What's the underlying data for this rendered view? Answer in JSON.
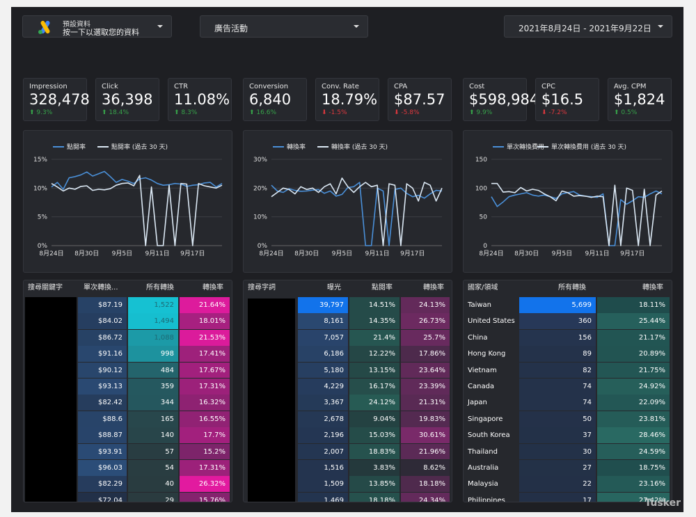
{
  "header": {
    "account": {
      "line1": "預設資料",
      "line2": "按一下以選取您的資料"
    },
    "campaign": "廣告活動",
    "date_range": "2021年8月24日 - 2021年9月22日"
  },
  "kpis": [
    {
      "label": "Impression",
      "value": "328,478",
      "change": "9.3%",
      "direction": "up"
    },
    {
      "label": "Click",
      "value": "36,398",
      "change": "18.4%",
      "direction": "up"
    },
    {
      "label": "CTR",
      "value": "11.08%",
      "change": "8.3%",
      "direction": "up"
    },
    {
      "label": "Conversion",
      "value": "6,840",
      "change": "16.6%",
      "direction": "up"
    },
    {
      "label": "Conv. Rate",
      "value": "18.79%",
      "change": "-1.5%",
      "direction": "down"
    },
    {
      "label": "CPA",
      "value": "$87.57",
      "change": "-5.8%",
      "direction": "down"
    },
    {
      "label": "Cost",
      "value": "$598,984",
      "change": "9.9%",
      "direction": "up"
    },
    {
      "label": "CPC",
      "value": "$16.5",
      "change": "-7.2%",
      "direction": "down"
    },
    {
      "label": "Avg. CPM",
      "value": "$1,824",
      "change": "0.5%",
      "direction": "up"
    }
  ],
  "colors": {
    "current": "#4a90d9",
    "previous": "#dce9f5",
    "up": "#37a34a",
    "down": "#e0383e"
  },
  "chart_data": [
    {
      "type": "line",
      "legend": [
        "點閱率",
        "點閱率 (過去 30 天)"
      ],
      "x_tick_labels": [
        "8月24日",
        "8月30日",
        "9月5日",
        "9月11日",
        "9月17日"
      ],
      "y_tick_labels": [
        "15%",
        "10%",
        "5%",
        "0%"
      ],
      "ylim": [
        0,
        15
      ],
      "series": [
        {
          "name": "點閱率",
          "values": [
            10.2,
            11.0,
            9.8,
            11.8,
            12.0,
            12.3,
            12.8,
            12.1,
            12.5,
            12.9,
            12.0,
            11.0,
            11.5,
            11.2,
            10.8,
            11.6,
            11.8,
            11.4,
            10.8,
            10.5,
            10.6,
            10.8,
            10.7,
            10.3,
            10.5,
            10.6,
            10.9,
            11.0,
            10.2,
            10.8
          ]
        },
        {
          "name": "點閱率 (過去 30 天)",
          "values": [
            10.8,
            10.2,
            9.5,
            10.0,
            9.8,
            10.3,
            10.4,
            9.6,
            9.8,
            9.7,
            9.9,
            10.5,
            10.8,
            10.9,
            10.4,
            12.2,
            0,
            10.2,
            0,
            0,
            10.5,
            0,
            10.8,
            10.7,
            0,
            10.8,
            10.4,
            10.2,
            10.0,
            10.5
          ]
        }
      ]
    },
    {
      "type": "line",
      "legend": [
        "轉換率",
        "轉換率 (過去 30 天)"
      ],
      "x_tick_labels": [
        "8月24日",
        "8月30日",
        "9月5日",
        "9月11日",
        "9月17日"
      ],
      "y_tick_labels": [
        "30%",
        "20%",
        "10%",
        "0%"
      ],
      "ylim": [
        0,
        30
      ],
      "series": [
        {
          "name": "轉換率",
          "values": [
            21.0,
            19.0,
            18.5,
            19.8,
            19.2,
            18.9,
            19.0,
            19.3,
            19.5,
            18.2,
            19.0,
            17.2,
            17.8,
            20.2,
            20.5,
            22.0,
            0,
            0,
            20.0,
            19.0,
            0,
            19.5,
            20.0,
            18.2,
            17.0,
            17.5,
            16.5,
            18.0,
            19.2,
            19.0
          ]
        },
        {
          "name": "轉換率 (過去 30 天)",
          "values": [
            17.0,
            18.5,
            20.0,
            19.5,
            18.0,
            20.5,
            19.5,
            20.0,
            18.5,
            20.5,
            21.5,
            18.0,
            23.5,
            20.5,
            18.5,
            20.5,
            22.0,
            20.5,
            21.0,
            0,
            21.5,
            21.0,
            0,
            21.5,
            20.0,
            15.5,
            22.0,
            21.0,
            15.5,
            20.0
          ]
        }
      ]
    },
    {
      "type": "line",
      "legend": [
        "單次轉換費用",
        "單次轉換費用 (過去 30 天)"
      ],
      "x_tick_labels": [
        "8月24日",
        "8月30日",
        "9月5日",
        "9月11日",
        "9月17日"
      ],
      "y_tick_labels": [
        "150",
        "100",
        "50",
        "0"
      ],
      "ylim": [
        0,
        150
      ],
      "series": [
        {
          "name": "單次轉換費用",
          "values": [
            85,
            68,
            76,
            85,
            88,
            90,
            92,
            88,
            86,
            88,
            85,
            82,
            90,
            92,
            94,
            88,
            86,
            85,
            84,
            90,
            0,
            0,
            80,
            72,
            78,
            85,
            84,
            90,
            95,
            90
          ]
        },
        {
          "name": "單次轉換費用 (過去 30 天)",
          "values": [
            108,
            108,
            93,
            94,
            92,
            101,
            95,
            98,
            96,
            90,
            85,
            78,
            95,
            92,
            86,
            87,
            86,
            84,
            86,
            85,
            0,
            105,
            0,
            100,
            96,
            0,
            98,
            0,
            88,
            95
          ]
        }
      ]
    }
  ],
  "table1": {
    "headers": [
      "搜尋關鍵字",
      "單次轉換...",
      "所有轉換",
      "轉換率"
    ],
    "rows": [
      [
        "$87.19",
        "1,522",
        "21.64%"
      ],
      [
        "$84.02",
        "1,494",
        "18.01%"
      ],
      [
        "$86.72",
        "1,088",
        "21.53%"
      ],
      [
        "$91.16",
        "998",
        "17.41%"
      ],
      [
        "$90.12",
        "484",
        "17.67%"
      ],
      [
        "$93.13",
        "359",
        "17.31%"
      ],
      [
        "$82.42",
        "344",
        "16.32%"
      ],
      [
        "$88.6",
        "165",
        "16.55%"
      ],
      [
        "$88.87",
        "140",
        "17.7%"
      ],
      [
        "$93.91",
        "57",
        "15.2%"
      ],
      [
        "$96.03",
        "54",
        "17.31%"
      ],
      [
        "$82.29",
        "40",
        "26.32%"
      ],
      [
        "$72.04",
        "29",
        "15.76%"
      ]
    ]
  },
  "table2": {
    "headers": [
      "搜尋字詞",
      "曝光",
      "點閱率",
      "轉換率"
    ],
    "rows": [
      [
        "39,797",
        "14.51%",
        "24.13%"
      ],
      [
        "8,161",
        "14.35%",
        "26.73%"
      ],
      [
        "7,057",
        "21.4%",
        "25.7%"
      ],
      [
        "6,186",
        "12.22%",
        "17.86%"
      ],
      [
        "5,180",
        "13.15%",
        "23.64%"
      ],
      [
        "4,229",
        "16.17%",
        "23.39%"
      ],
      [
        "3,367",
        "24.12%",
        "21.31%"
      ],
      [
        "2,678",
        "9.04%",
        "19.83%"
      ],
      [
        "2,196",
        "15.03%",
        "30.61%"
      ],
      [
        "2,007",
        "18.83%",
        "21.96%"
      ],
      [
        "1,516",
        "3.83%",
        "8.62%"
      ],
      [
        "1,509",
        "13.85%",
        "18.18%"
      ],
      [
        "1,469",
        "18.18%",
        "24.34%"
      ]
    ]
  },
  "table3": {
    "headers": [
      "國家/領域",
      "所有轉換",
      "轉換率"
    ],
    "rows": [
      [
        "Taiwan",
        "5,699",
        "18.11%"
      ],
      [
        "United States",
        "360",
        "25.44%"
      ],
      [
        "China",
        "156",
        "21.17%"
      ],
      [
        "Hong Kong",
        "89",
        "20.89%"
      ],
      [
        "Vietnam",
        "82",
        "21.75%"
      ],
      [
        "Canada",
        "74",
        "24.92%"
      ],
      [
        "Japan",
        "74",
        "22.09%"
      ],
      [
        "Singapore",
        "50",
        "23.81%"
      ],
      [
        "South Korea",
        "37",
        "28.46%"
      ],
      [
        "Thailand",
        "30",
        "24.59%"
      ],
      [
        "Australia",
        "27",
        "18.75%"
      ],
      [
        "Malaysia",
        "22",
        "23.16%"
      ],
      [
        "Philippines",
        "17",
        "27.42%"
      ]
    ]
  },
  "watermark": "Tusker"
}
